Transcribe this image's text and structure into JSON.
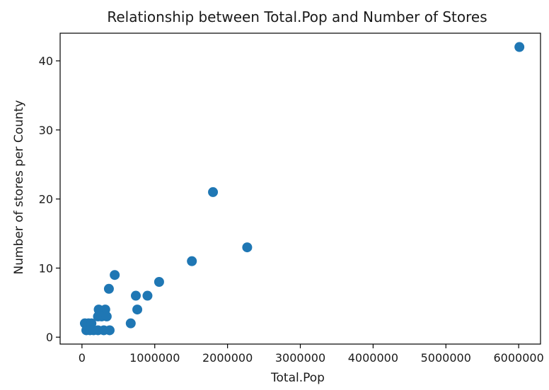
{
  "chart_data": {
    "type": "scatter",
    "title": "Relationship between Total.Pop and Number of Stores",
    "xlabel": "Total.Pop",
    "ylabel": "Number of stores per County",
    "xlim": [
      -300000,
      6300000
    ],
    "ylim": [
      -1,
      44
    ],
    "xticks": [
      0,
      1000000,
      2000000,
      3000000,
      4000000,
      5000000,
      6000000
    ],
    "xtick_labels": [
      "0",
      "1000000",
      "2000000",
      "3000000",
      "4000000",
      "5000000",
      "6000000"
    ],
    "yticks": [
      0,
      10,
      20,
      30,
      40
    ],
    "ytick_labels": [
      "0",
      "10",
      "20",
      "30",
      "40"
    ],
    "grid": false,
    "color": "#1f77b4",
    "series": [
      {
        "points": [
          {
            "x": 6010000,
            "y": 42
          },
          {
            "x": 1800000,
            "y": 21
          },
          {
            "x": 2270000,
            "y": 13
          },
          {
            "x": 1510000,
            "y": 11
          },
          {
            "x": 450000,
            "y": 9
          },
          {
            "x": 1060000,
            "y": 8
          },
          {
            "x": 370000,
            "y": 7
          },
          {
            "x": 740000,
            "y": 6
          },
          {
            "x": 900000,
            "y": 6
          },
          {
            "x": 760000,
            "y": 4
          },
          {
            "x": 230000,
            "y": 4
          },
          {
            "x": 320000,
            "y": 4
          },
          {
            "x": 220000,
            "y": 3
          },
          {
            "x": 270000,
            "y": 3
          },
          {
            "x": 340000,
            "y": 3
          },
          {
            "x": 670000,
            "y": 2
          },
          {
            "x": 40000,
            "y": 2
          },
          {
            "x": 90000,
            "y": 2
          },
          {
            "x": 130000,
            "y": 2
          },
          {
            "x": 60000,
            "y": 1
          },
          {
            "x": 110000,
            "y": 1
          },
          {
            "x": 160000,
            "y": 1
          },
          {
            "x": 220000,
            "y": 1
          },
          {
            "x": 300000,
            "y": 1
          },
          {
            "x": 380000,
            "y": 1
          }
        ]
      }
    ]
  }
}
